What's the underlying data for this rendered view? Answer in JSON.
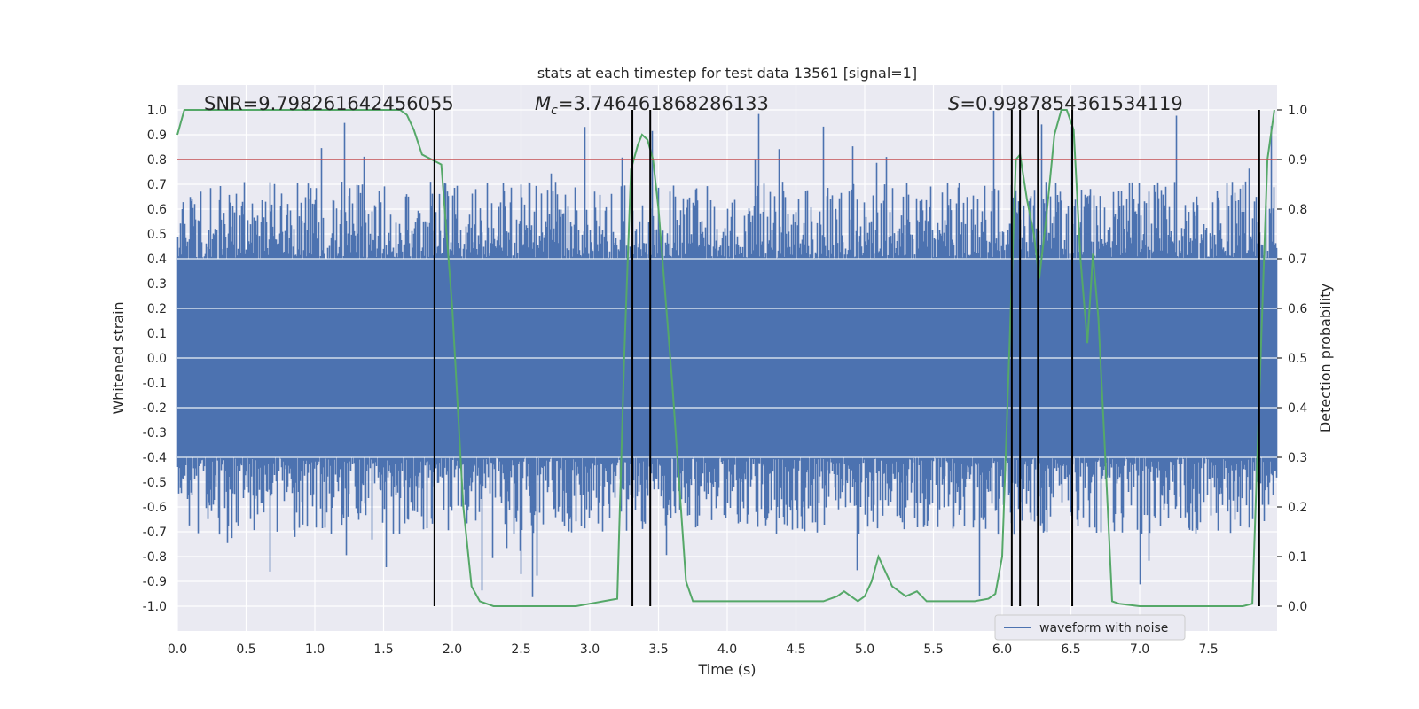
{
  "chart_data": {
    "type": "line",
    "title": "stats at each timestep for test data 13561 [signal=1]",
    "xlabel": "Time (s)",
    "ylabel_left": "Whitened strain",
    "ylabel_right": "Detection probability",
    "xlim": [
      0.0,
      8.0
    ],
    "ylim_left": [
      -1.1,
      1.1
    ],
    "ylim_right": [
      -0.05,
      1.05
    ],
    "xticks": [
      "0.0",
      "0.5",
      "1.0",
      "1.5",
      "2.0",
      "2.5",
      "3.0",
      "3.5",
      "4.0",
      "4.5",
      "5.0",
      "5.5",
      "6.0",
      "6.5",
      "7.0",
      "7.5"
    ],
    "yticks_left": [
      "1.0",
      "0.9",
      "0.8",
      "0.7",
      "0.6",
      "0.5",
      "0.4",
      "0.3",
      "0.2",
      "0.1",
      "0.0",
      "-0.1",
      "-0.2",
      "-0.3",
      "-0.4",
      "-0.5",
      "-0.6",
      "-0.7",
      "-0.8",
      "-0.9",
      "-1.0"
    ],
    "yticks_right": [
      "1.0",
      "0.9",
      "0.8",
      "0.7",
      "0.6",
      "0.5",
      "0.4",
      "0.3",
      "0.2",
      "0.1",
      "0.0"
    ],
    "annotations": {
      "snr": "SNR=9.798261642456055",
      "mc_symbol": "M",
      "mc_sub": "c",
      "mc_value": "=3.746461868286133",
      "s_symbol": "S",
      "s_value": "=0.9987854361534119"
    },
    "legend": "waveform with noise",
    "threshold": 0.8,
    "detection_events_x": [
      1.87,
      3.31,
      3.44,
      6.07,
      6.13,
      6.26,
      6.51,
      7.87
    ],
    "waveform": {
      "name": "waveform with noise",
      "color": "#4c72b0",
      "core_amplitude": 0.4,
      "typical_peak": 0.72,
      "max_peak": 1.0,
      "min_peak": -0.99
    },
    "detection_probability": {
      "color": "#55a868",
      "x": [
        0.0,
        0.05,
        0.1,
        0.3,
        0.6,
        0.9,
        1.2,
        1.5,
        1.62,
        1.67,
        1.72,
        1.78,
        1.85,
        1.92,
        2.0,
        2.08,
        2.14,
        2.2,
        2.3,
        2.5,
        2.7,
        2.9,
        3.0,
        3.1,
        3.2,
        3.25,
        3.3,
        3.35,
        3.38,
        3.42,
        3.46,
        3.5,
        3.6,
        3.7,
        3.75,
        3.8,
        4.0,
        4.2,
        4.5,
        4.7,
        4.8,
        4.85,
        4.9,
        4.95,
        5.0,
        5.05,
        5.1,
        5.2,
        5.3,
        5.38,
        5.45,
        5.55,
        5.7,
        5.8,
        5.9,
        5.95,
        6.0,
        6.05,
        6.1,
        6.13,
        6.18,
        6.23,
        6.27,
        6.32,
        6.38,
        6.43,
        6.47,
        6.52,
        6.57,
        6.62,
        6.66,
        6.7,
        6.75,
        6.8,
        6.85,
        7.0,
        7.2,
        7.4,
        7.6,
        7.75,
        7.82,
        7.88,
        7.93,
        7.98
      ],
      "y": [
        0.95,
        1.0,
        1.0,
        1.0,
        1.0,
        1.0,
        1.0,
        1.0,
        1.0,
        0.99,
        0.96,
        0.91,
        0.9,
        0.89,
        0.6,
        0.2,
        0.04,
        0.01,
        0.0,
        0.0,
        0.0,
        0.0,
        0.005,
        0.01,
        0.015,
        0.5,
        0.88,
        0.93,
        0.95,
        0.94,
        0.9,
        0.8,
        0.45,
        0.05,
        0.01,
        0.01,
        0.01,
        0.01,
        0.01,
        0.01,
        0.02,
        0.03,
        0.02,
        0.01,
        0.02,
        0.05,
        0.1,
        0.04,
        0.02,
        0.03,
        0.01,
        0.01,
        0.01,
        0.01,
        0.015,
        0.025,
        0.1,
        0.5,
        0.9,
        0.91,
        0.82,
        0.75,
        0.66,
        0.78,
        0.95,
        1.0,
        1.0,
        0.96,
        0.7,
        0.53,
        0.71,
        0.58,
        0.3,
        0.01,
        0.005,
        0.0,
        0.0,
        0.0,
        0.0,
        0.0,
        0.005,
        0.5,
        0.9,
        1.0
      ]
    }
  }
}
